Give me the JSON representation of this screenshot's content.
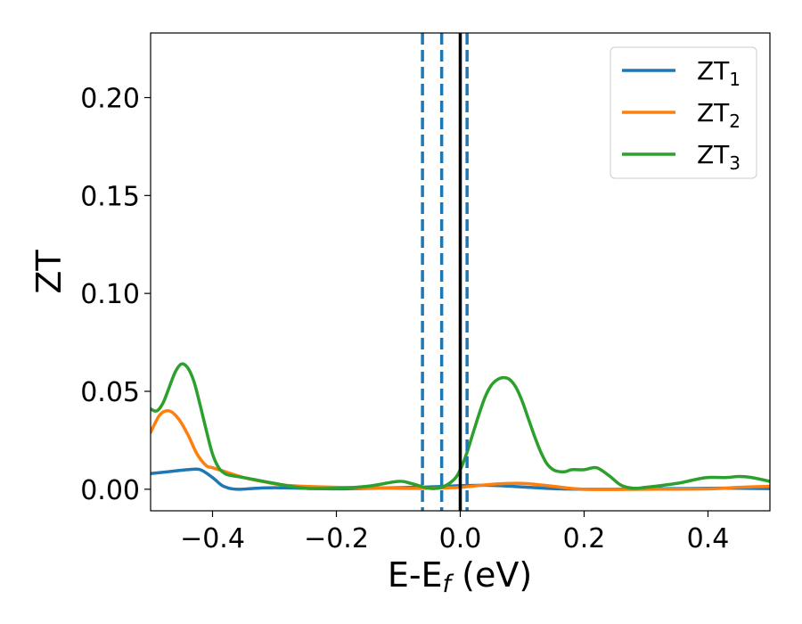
{
  "chart_data": {
    "type": "line",
    "xlabel": "E-E",
    "xlabel_sub": "f",
    "xlabel_unit": " (eV)",
    "ylabel": "ZT",
    "xlim": [
      -0.5,
      0.5
    ],
    "ylim": [
      -0.011,
      0.233
    ],
    "xticks": [
      -0.4,
      -0.2,
      0.0,
      0.2,
      0.4
    ],
    "xtick_labels": [
      "−0.4",
      "−0.2",
      "0.0",
      "0.2",
      "0.4"
    ],
    "yticks": [
      0.0,
      0.05,
      0.1,
      0.15,
      0.2
    ],
    "ytick_labels": [
      "0.00",
      "0.05",
      "0.10",
      "0.15",
      "0.20"
    ],
    "legend_position": "upper right",
    "series": [
      {
        "name": "ZT",
        "name_sub": "1",
        "color": "#1f77b4",
        "x": [
          -0.5,
          -0.47,
          -0.44,
          -0.42,
          -0.4,
          -0.385,
          -0.37,
          -0.355,
          -0.33,
          -0.3,
          -0.25,
          -0.2,
          -0.15,
          -0.1,
          -0.05,
          0.0,
          0.05,
          0.1,
          0.15,
          0.2,
          0.25,
          0.3,
          0.35,
          0.4,
          0.45,
          0.5
        ],
        "y": [
          0.008,
          0.009,
          0.01,
          0.01,
          0.006,
          0.002,
          0.0003,
          0.0,
          0.0005,
          0.0008,
          0.0005,
          0.0002,
          0.0005,
          0.0008,
          0.0012,
          0.0018,
          0.002,
          0.0012,
          0.0003,
          0.0,
          0.0,
          0.0002,
          0.0003,
          0.0005,
          0.0005,
          0.0003
        ]
      },
      {
        "name": "ZT",
        "name_sub": "2",
        "color": "#ff7f0e",
        "x": [
          -0.5,
          -0.485,
          -0.47,
          -0.455,
          -0.44,
          -0.425,
          -0.41,
          -0.4,
          -0.38,
          -0.35,
          -0.32,
          -0.28,
          -0.2,
          -0.1,
          -0.05,
          0.0,
          0.05,
          0.1,
          0.15,
          0.2,
          0.3,
          0.4,
          0.45,
          0.5
        ],
        "y": [
          0.029,
          0.038,
          0.04,
          0.036,
          0.028,
          0.018,
          0.012,
          0.011,
          0.009,
          0.006,
          0.004,
          0.002,
          0.001,
          0.0005,
          0.0005,
          0.001,
          0.0025,
          0.003,
          0.0015,
          0.0,
          0.0,
          0.0002,
          0.001,
          0.0015
        ]
      },
      {
        "name": "ZT",
        "name_sub": "3",
        "color": "#2ca02c",
        "x": [
          -0.5,
          -0.49,
          -0.48,
          -0.47,
          -0.46,
          -0.45,
          -0.44,
          -0.43,
          -0.42,
          -0.41,
          -0.4,
          -0.39,
          -0.38,
          -0.37,
          -0.35,
          -0.3,
          -0.25,
          -0.2,
          -0.15,
          -0.1,
          -0.08,
          -0.05,
          -0.03,
          -0.01,
          0.0,
          0.01,
          0.02,
          0.03,
          0.04,
          0.05,
          0.06,
          0.07,
          0.08,
          0.09,
          0.1,
          0.11,
          0.12,
          0.13,
          0.14,
          0.15,
          0.16,
          0.17,
          0.18,
          0.2,
          0.22,
          0.24,
          0.26,
          0.28,
          0.3,
          0.35,
          0.38,
          0.4,
          0.43,
          0.45,
          0.47,
          0.5
        ],
        "y": [
          0.041,
          0.04,
          0.044,
          0.052,
          0.06,
          0.064,
          0.062,
          0.055,
          0.043,
          0.03,
          0.018,
          0.011,
          0.008,
          0.007,
          0.006,
          0.003,
          0.0005,
          0.0005,
          0.0015,
          0.004,
          0.003,
          0.0005,
          0.001,
          0.005,
          0.01,
          0.018,
          0.028,
          0.038,
          0.047,
          0.053,
          0.056,
          0.057,
          0.056,
          0.052,
          0.045,
          0.036,
          0.027,
          0.019,
          0.013,
          0.01,
          0.009,
          0.009,
          0.01,
          0.01,
          0.011,
          0.007,
          0.002,
          0.0005,
          0.001,
          0.003,
          0.005,
          0.006,
          0.006,
          0.0065,
          0.006,
          0.004
        ]
      }
    ],
    "vlines": [
      {
        "x": -0.061,
        "style": "dashed",
        "color": "#1f77b4"
      },
      {
        "x": -0.03,
        "style": "dashed",
        "color": "#1f77b4"
      },
      {
        "x": 0.0,
        "style": "solid",
        "color": "#000000"
      },
      {
        "x": 0.011,
        "style": "dashed",
        "color": "#1f77b4"
      }
    ]
  }
}
